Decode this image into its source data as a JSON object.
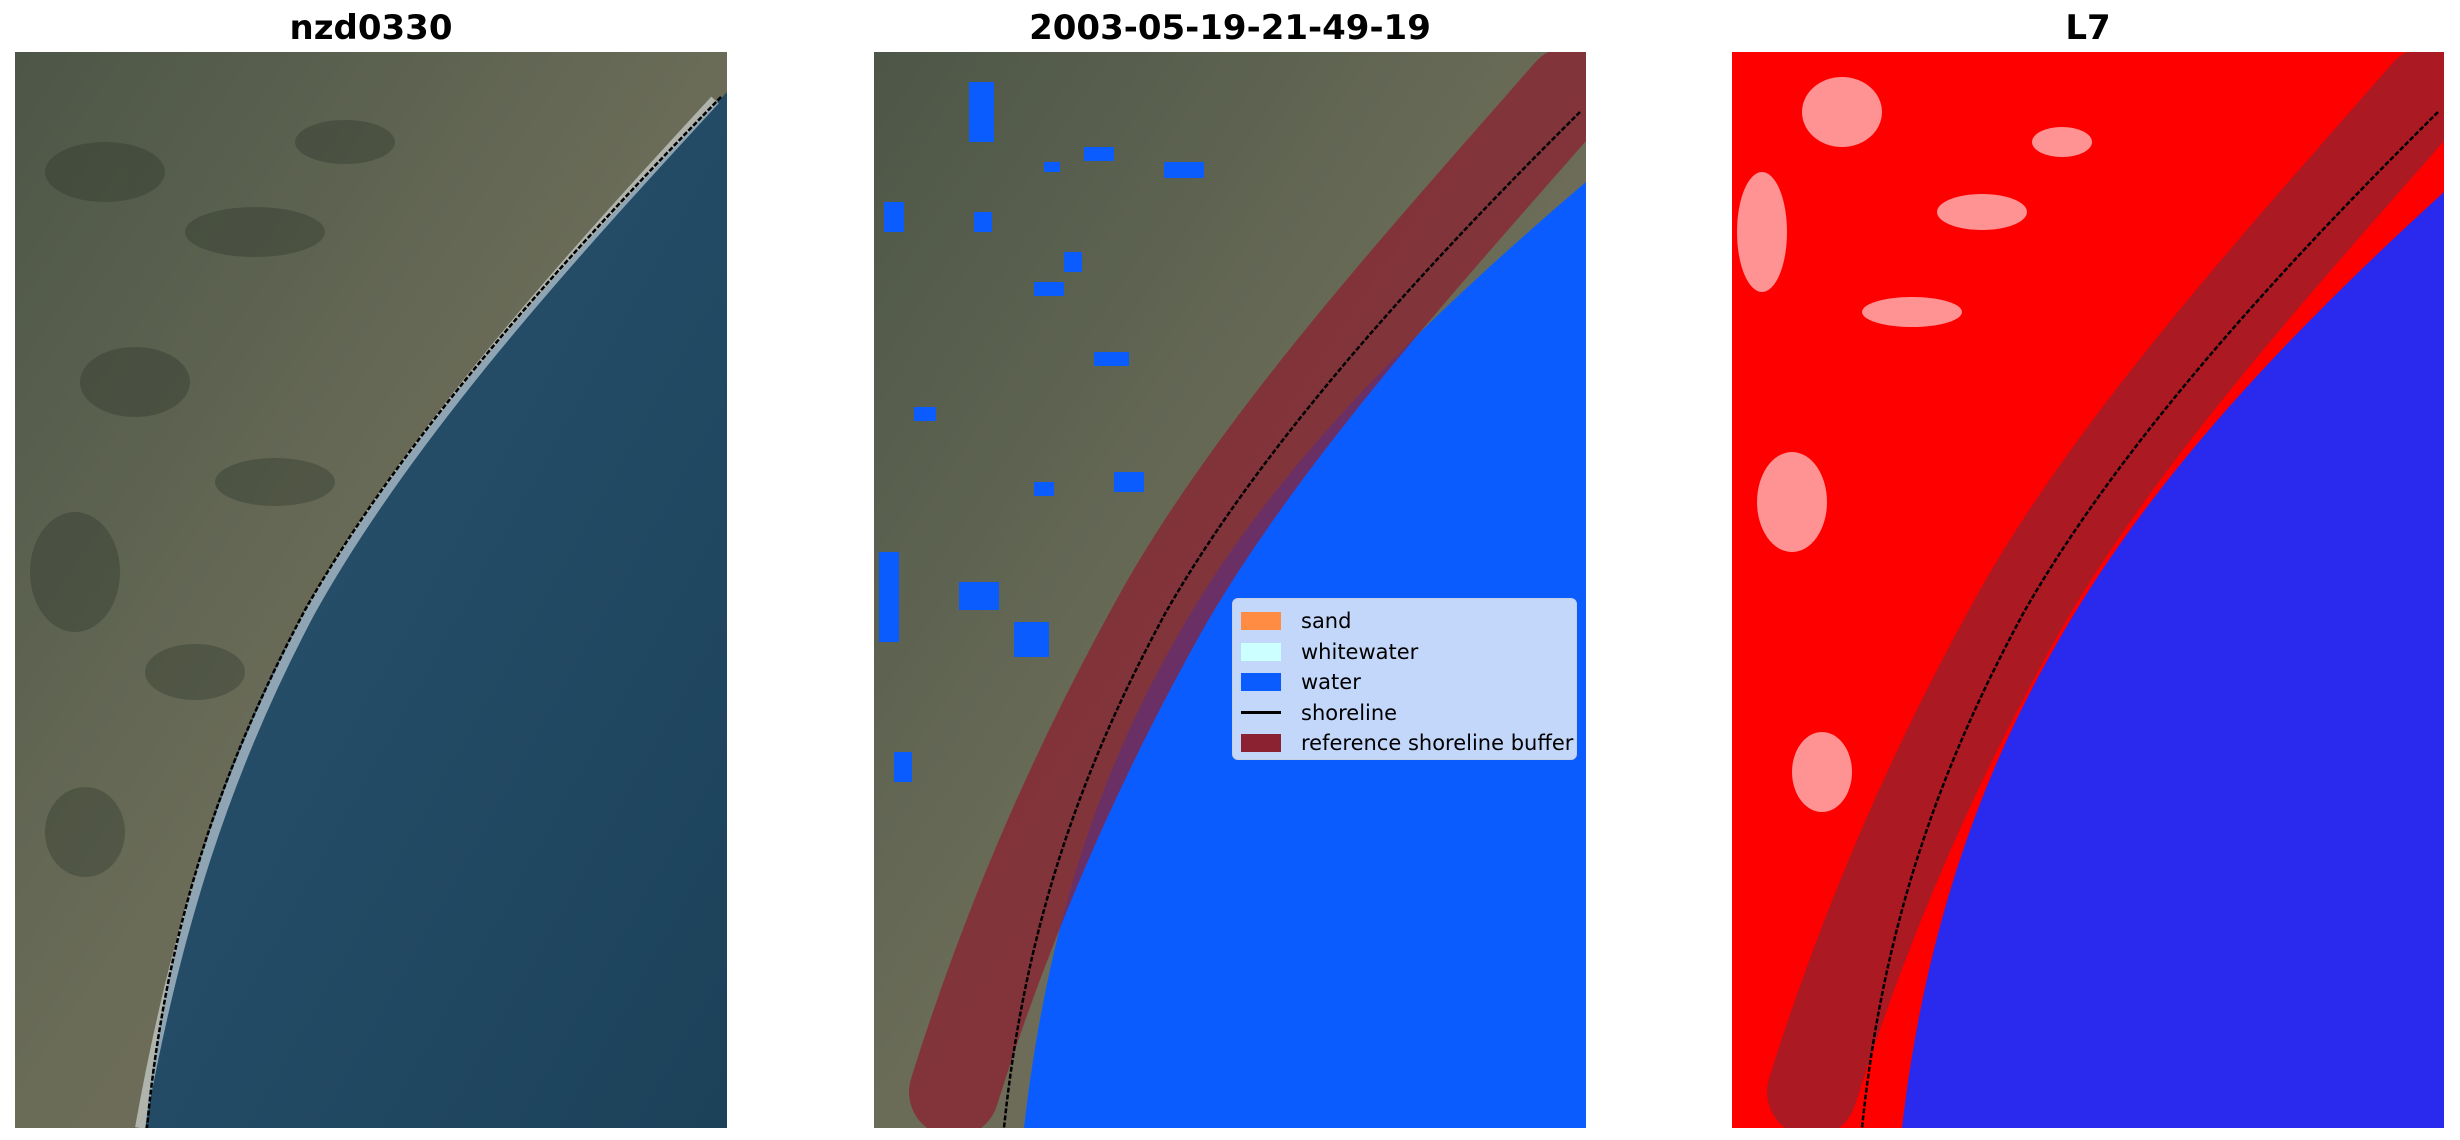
{
  "panels": [
    {
      "title": "nzd0330"
    },
    {
      "title": "2003-05-19-21-49-19"
    },
    {
      "title": "L7"
    }
  ],
  "legend": {
    "items": [
      {
        "label": "sand",
        "color": "#ff8c42",
        "kind": "patch"
      },
      {
        "label": "whitewater",
        "color": "#ccffff",
        "kind": "patch"
      },
      {
        "label": "water",
        "color": "#0a5cff",
        "kind": "patch"
      },
      {
        "label": "shoreline",
        "color": "#000000",
        "kind": "line"
      },
      {
        "label": "reference shoreline buffer",
        "color": "#8b2231",
        "kind": "patch"
      }
    ]
  },
  "colors": {
    "land_rgb": "#5f6450",
    "sea_rgb": "#1f4a63",
    "water_class": "#0a5cff",
    "land_index": "#ff0000",
    "water_index": "#2a2aee",
    "buffer": "#8b2231"
  }
}
